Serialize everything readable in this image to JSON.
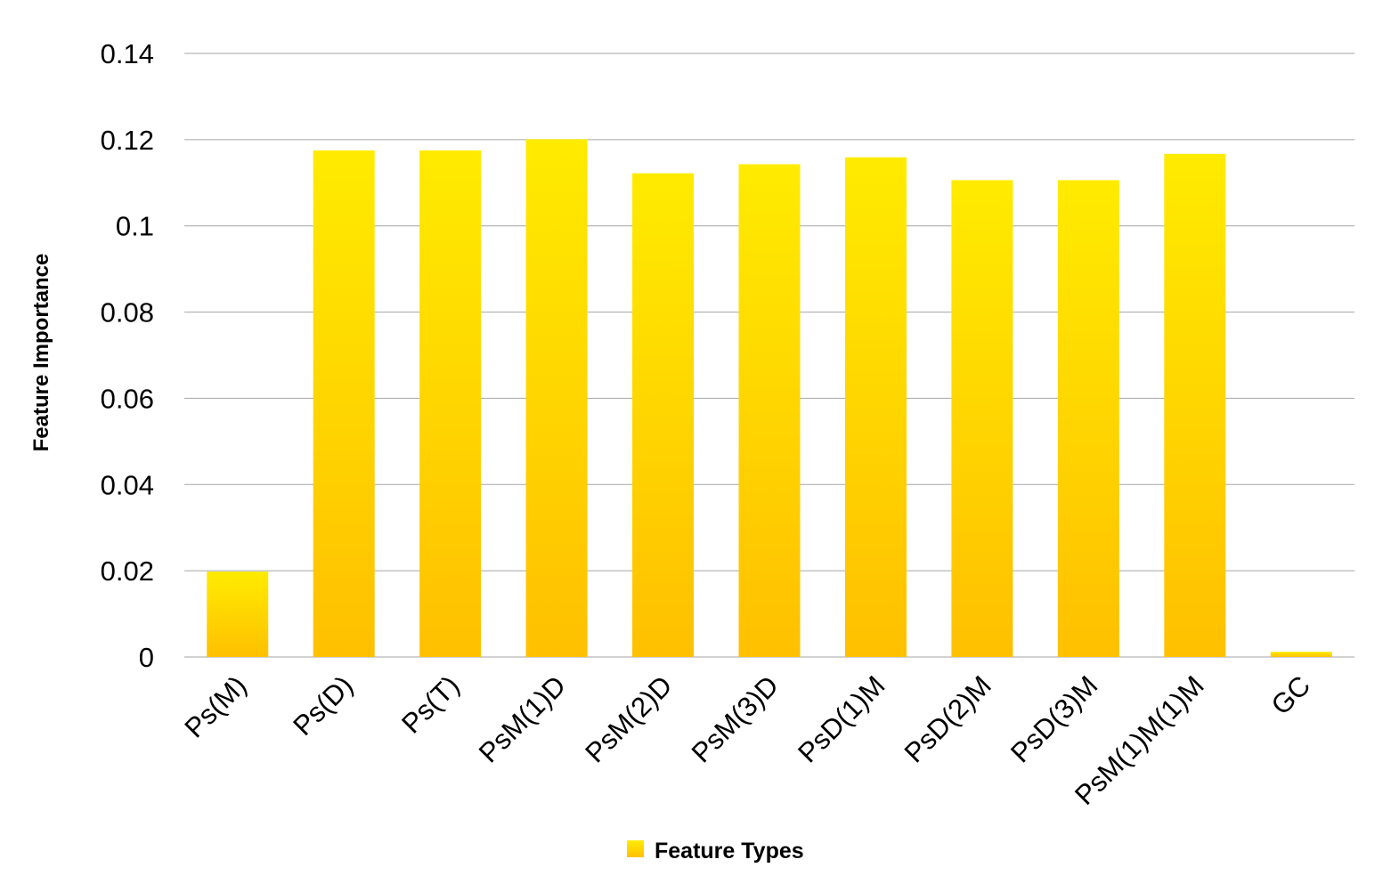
{
  "chart_data": {
    "type": "bar",
    "title": "",
    "xlabel": "",
    "ylabel": "Feature Importance",
    "categories": [
      "Ps(M)",
      "Ps(D)",
      "Ps(T)",
      "PsM(1)D",
      "PsM(2)D",
      "PsM(3)D",
      "PsD(1)M",
      "PsD(2)M",
      "PsD(3)M",
      "PsM(1)M(1)M",
      "GC"
    ],
    "series": [
      {
        "name": "Feature Types",
        "values": [
          0.0198,
          0.1175,
          0.1175,
          0.1201,
          0.1122,
          0.1143,
          0.1159,
          0.1106,
          0.1106,
          0.1167,
          0.0012
        ]
      }
    ],
    "ylim": [
      0,
      0.14
    ],
    "yticks": [
      "0",
      "0.02",
      "0.04",
      "0.06",
      "0.08",
      "0.1",
      "0.12",
      "0.14"
    ],
    "grid": true,
    "legend_position": "bottom",
    "colors": {
      "bar_top": "#ffeb00",
      "bar_bottom": "#ffc000",
      "gridline": "#a6a6a6"
    }
  }
}
